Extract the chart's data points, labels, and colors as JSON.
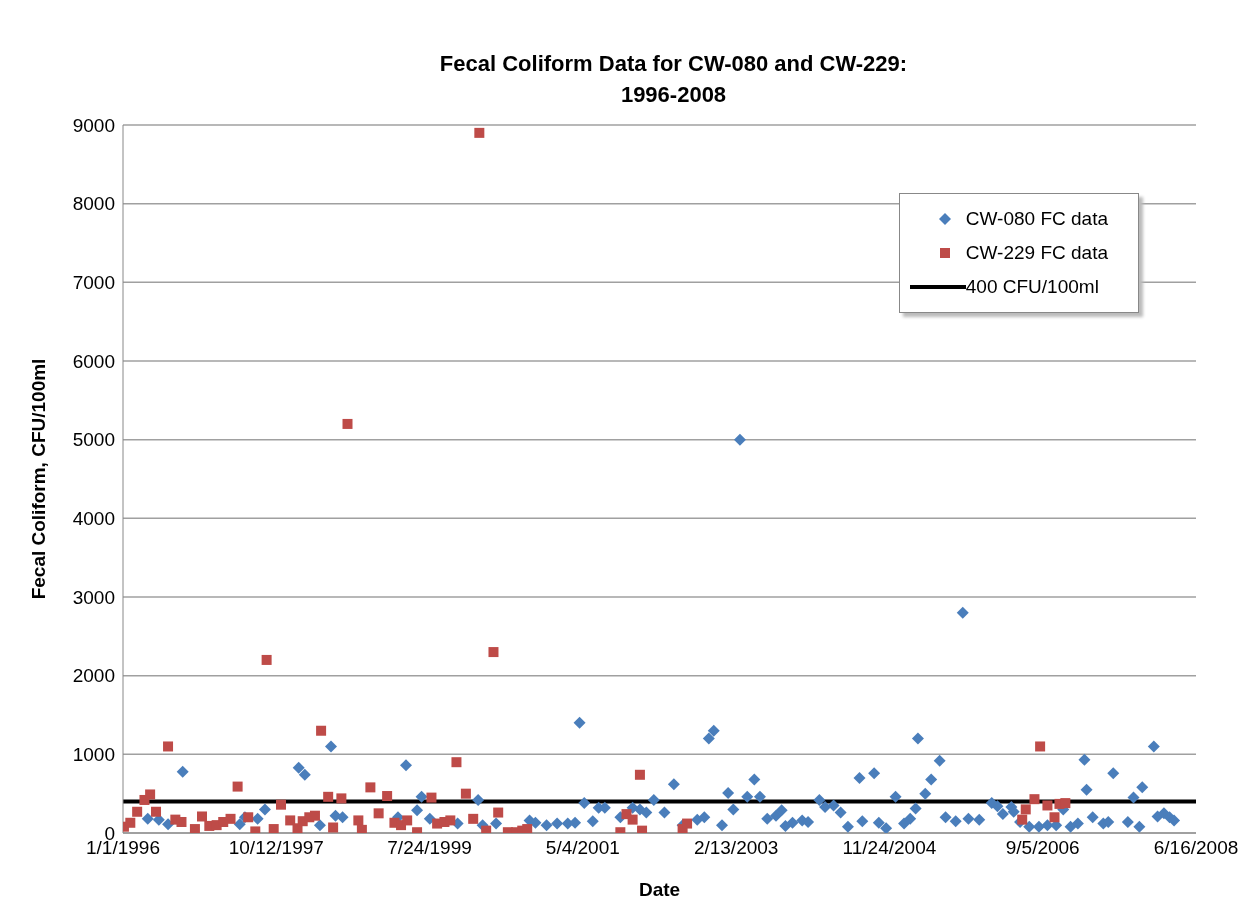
{
  "chart_data": {
    "type": "scatter",
    "title": "Fecal Coliform Data for CW-080 and CW-229:\n1996-2008",
    "xlabel": "Date",
    "ylabel": "Fecal Coliform, CFU/100ml",
    "xlim": [
      "1996-01-01",
      "2008-06-16"
    ],
    "xticks": [
      {
        "value": "1996-01-01",
        "label": "1/1/1996"
      },
      {
        "value": "1997-10-12",
        "label": "10/12/1997"
      },
      {
        "value": "1999-07-24",
        "label": "7/24/1999"
      },
      {
        "value": "2001-05-04",
        "label": "5/4/2001"
      },
      {
        "value": "2003-02-13",
        "label": "2/13/2003"
      },
      {
        "value": "2004-11-24",
        "label": "11/24/2004"
      },
      {
        "value": "2006-09-05",
        "label": "9/5/2006"
      },
      {
        "value": "2008-06-16",
        "label": "6/16/2008"
      }
    ],
    "ylim": [
      0,
      9000
    ],
    "yticks": [
      0,
      1000,
      2000,
      3000,
      4000,
      5000,
      6000,
      7000,
      8000,
      9000
    ],
    "grid": "y",
    "legend": "top right",
    "series": [
      {
        "name": "CW-080 FC data",
        "color": "#4a7ebb",
        "marker": "diamond",
        "x": [
          "1996-04-15",
          "1996-06-01",
          "1996-07-10",
          "1996-09-10",
          "1997-05-10",
          "1997-06-01",
          "1997-07-25",
          "1997-08-25",
          "1998-01-15",
          "1998-02-10",
          "1998-04-15",
          "1998-06-01",
          "1998-06-20",
          "1998-07-20",
          "1999-03-12",
          "1999-04-15",
          "1999-06-01",
          "1999-06-20",
          "1999-07-25",
          "1999-11-20",
          "2000-02-15",
          "2000-03-05",
          "2000-05-01",
          "2000-09-20",
          "2000-10-15",
          "2000-12-01",
          "2001-01-15",
          "2001-03-01",
          "2001-04-01",
          "2001-04-20",
          "2001-05-10",
          "2001-06-15",
          "2001-07-10",
          "2001-08-05",
          "2001-10-10",
          "2001-12-01",
          "2002-01-01",
          "2002-01-28",
          "2002-03-01",
          "2002-04-15",
          "2002-05-25",
          "2002-07-01",
          "2002-09-01",
          "2002-10-01",
          "2002-10-20",
          "2002-11-10",
          "2002-12-15",
          "2003-01-10",
          "2003-02-01",
          "2003-03-01",
          "2003-04-01",
          "2003-05-01",
          "2003-05-25",
          "2003-06-25",
          "2003-08-01",
          "2003-08-25",
          "2003-09-10",
          "2003-10-10",
          "2003-11-20",
          "2003-12-15",
          "2004-02-01",
          "2004-02-25",
          "2004-04-01",
          "2004-05-01",
          "2004-06-01",
          "2004-07-20",
          "2004-08-01",
          "2004-09-20",
          "2004-10-10",
          "2004-11-10",
          "2004-12-20",
          "2005-01-25",
          "2005-02-20",
          "2005-03-15",
          "2005-03-25",
          "2005-04-25",
          "2005-05-20",
          "2005-06-25",
          "2005-07-20",
          "2005-09-01",
          "2005-10-01",
          "2005-10-25",
          "2005-12-10",
          "2006-02-01",
          "2006-02-25",
          "2006-03-20",
          "2006-04-25",
          "2006-05-05",
          "2006-06-01",
          "2006-07-10",
          "2006-08-20",
          "2006-09-25",
          "2006-11-01",
          "2006-12-01",
          "2007-01-01",
          "2007-02-01",
          "2007-03-01",
          "2007-03-10",
          "2007-04-05",
          "2007-05-20",
          "2007-06-10",
          "2007-07-01",
          "2007-09-01",
          "2007-09-25",
          "2007-10-20",
          "2007-11-01",
          "2007-12-20",
          "2008-01-05",
          "2008-02-01",
          "2008-02-25",
          "2008-03-15"
        ],
        "values": [
          180,
          170,
          110,
          780,
          110,
          200,
          180,
          300,
          830,
          740,
          100,
          1100,
          220,
          200,
          200,
          860,
          290,
          460,
          180,
          120,
          420,
          100,
          120,
          160,
          130,
          100,
          120,
          120,
          130,
          1400,
          380,
          150,
          320,
          320,
          200,
          320,
          300,
          260,
          420,
          260,
          620,
          100,
          170,
          200,
          1200,
          1300,
          100,
          510,
          300,
          5000,
          460,
          680,
          460,
          180,
          220,
          290,
          90,
          130,
          160,
          140,
          420,
          330,
          350,
          260,
          80,
          700,
          150,
          760,
          130,
          60,
          460,
          120,
          180,
          310,
          1200,
          500,
          680,
          920,
          200,
          150,
          2800,
          180,
          170,
          380,
          340,
          240,
          330,
          270,
          140,
          80,
          80,
          100,
          100,
          300,
          80,
          120,
          930,
          550,
          200,
          120,
          140,
          760,
          140,
          450,
          80,
          580,
          1100,
          210,
          250,
          200,
          160
        ]
      },
      {
        "name": "CW-229 FC data",
        "color": "#be4b48",
        "marker": "square",
        "x": [
          "1996-01-05",
          "1996-02-01",
          "1996-03-01",
          "1996-04-01",
          "1996-04-25",
          "1996-05-20",
          "1996-07-10",
          "1996-08-10",
          "1996-09-05",
          "1996-11-01",
          "1996-12-01",
          "1997-01-01",
          "1997-02-01",
          "1997-03-01",
          "1997-04-01",
          "1997-05-01",
          "1997-06-15",
          "1997-07-15",
          "1997-09-01",
          "1997-10-01",
          "1997-11-01",
          "1997-12-10",
          "1998-01-10",
          "1998-02-01",
          "1998-03-01",
          "1998-03-25",
          "1998-04-20",
          "1998-05-20",
          "1998-06-10",
          "1998-07-15",
          "1998-08-10",
          "1998-09-25",
          "1998-10-10",
          "1998-11-15",
          "1998-12-20",
          "1999-01-25",
          "1999-02-25",
          "1999-03-25",
          "1999-04-20",
          "1999-06-01",
          "1999-08-01",
          "1999-08-25",
          "1999-09-25",
          "1999-10-20",
          "1999-11-15",
          "1999-12-25",
          "2000-01-25",
          "2000-02-20",
          "2000-03-20",
          "2000-04-20",
          "2000-05-10",
          "2000-06-20",
          "2000-07-25",
          "2000-08-20",
          "2000-09-10",
          "2001-10-10",
          "2001-11-05",
          "2001-12-01",
          "2002-01-01",
          "2002-01-10",
          "2002-07-01",
          "2002-07-20",
          "2006-06-10",
          "2006-06-25",
          "2006-08-01",
          "2006-08-25",
          "2006-09-25",
          "2006-10-25",
          "2006-11-15",
          "2006-12-10"
        ],
        "values": [
          80,
          130,
          270,
          420,
          490,
          270,
          1100,
          170,
          140,
          50,
          210,
          90,
          100,
          140,
          180,
          590,
          200,
          20,
          2200,
          50,
          360,
          160,
          60,
          150,
          200,
          220,
          1300,
          460,
          70,
          440,
          5200,
          160,
          40,
          580,
          250,
          470,
          130,
          100,
          160,
          10,
          450,
          120,
          140,
          160,
          900,
          500,
          180,
          8900,
          30,
          2300,
          260,
          10,
          10,
          30,
          50,
          10,
          240,
          170,
          740,
          30,
          50,
          120,
          170,
          300,
          430,
          1100,
          350,
          200,
          370,
          380
        ]
      }
    ],
    "ref_lines": [
      {
        "axis": "y",
        "value": 400,
        "label": "400 CFU/100ml",
        "color": "#000000"
      }
    ]
  }
}
